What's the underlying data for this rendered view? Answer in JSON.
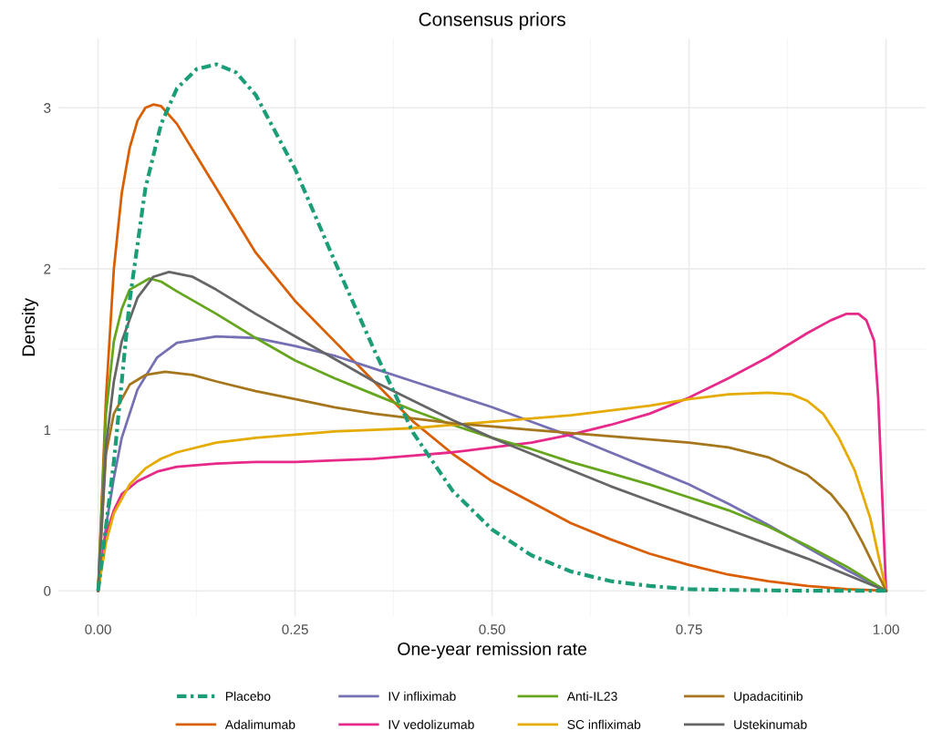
{
  "chart_data": {
    "type": "line",
    "title": "Consensus priors",
    "xlabel": "One-year remission rate",
    "ylabel": "Density",
    "xlim": [
      -0.05,
      1.05
    ],
    "ylim": [
      -0.16,
      3.43
    ],
    "xticks": [
      {
        "value": 0,
        "label": "0.00"
      },
      {
        "value": 0.25,
        "label": "0.25"
      },
      {
        "value": 0.5,
        "label": "0.50"
      },
      {
        "value": 0.75,
        "label": "0.75"
      },
      {
        "value": 1,
        "label": "1.00"
      }
    ],
    "yticks": [
      0,
      1,
      2,
      3
    ],
    "grid": true,
    "legend": "bottom",
    "marker": "none",
    "line_style": "solid",
    "series": [
      {
        "name": "Placebo",
        "color": "#1b9e77",
        "line_style": "dashdot",
        "x": [
          0,
          0.02,
          0.04,
          0.06,
          0.08,
          0.1,
          0.125,
          0.15,
          0.175,
          0.2,
          0.25,
          0.3,
          0.35,
          0.4,
          0.45,
          0.5,
          0.55,
          0.6,
          0.65,
          0.7,
          0.75,
          0.8,
          0.9,
          1
        ],
        "values": [
          0,
          0.8,
          1.8,
          2.5,
          2.9,
          3.12,
          3.24,
          3.27,
          3.22,
          3.08,
          2.62,
          2.05,
          1.5,
          0.98,
          0.62,
          0.38,
          0.22,
          0.12,
          0.06,
          0.03,
          0.01,
          0.005,
          0,
          0
        ]
      },
      {
        "name": "Adalimumab",
        "color": "#d95f02",
        "x": [
          0,
          0.01,
          0.02,
          0.03,
          0.04,
          0.05,
          0.06,
          0.07,
          0.08,
          0.1,
          0.125,
          0.15,
          0.2,
          0.25,
          0.3,
          0.35,
          0.4,
          0.45,
          0.5,
          0.55,
          0.6,
          0.65,
          0.7,
          0.75,
          0.8,
          0.85,
          0.9,
          0.95,
          1
        ],
        "values": [
          0,
          1.2,
          2.0,
          2.47,
          2.75,
          2.92,
          3.0,
          3.02,
          3.01,
          2.9,
          2.7,
          2.5,
          2.1,
          1.8,
          1.55,
          1.3,
          1.05,
          0.85,
          0.68,
          0.55,
          0.42,
          0.32,
          0.23,
          0.16,
          0.1,
          0.06,
          0.03,
          0.01,
          0
        ]
      },
      {
        "name": "IV infliximab",
        "color": "#7570b3",
        "x": [
          0,
          0.01,
          0.02,
          0.03,
          0.05,
          0.075,
          0.1,
          0.15,
          0.2,
          0.25,
          0.3,
          0.35,
          0.4,
          0.45,
          0.5,
          0.55,
          0.6,
          0.65,
          0.7,
          0.75,
          0.8,
          0.85,
          0.9,
          0.95,
          1
        ],
        "values": [
          0,
          0.4,
          0.7,
          0.95,
          1.25,
          1.45,
          1.54,
          1.58,
          1.57,
          1.52,
          1.46,
          1.38,
          1.3,
          1.22,
          1.14,
          1.05,
          0.96,
          0.86,
          0.76,
          0.66,
          0.54,
          0.41,
          0.27,
          0.13,
          0
        ]
      },
      {
        "name": "IV vedolizumab",
        "color": "#e7298a",
        "x": [
          0,
          0.01,
          0.02,
          0.03,
          0.05,
          0.075,
          0.1,
          0.15,
          0.2,
          0.25,
          0.3,
          0.35,
          0.4,
          0.45,
          0.5,
          0.55,
          0.6,
          0.65,
          0.7,
          0.75,
          0.8,
          0.85,
          0.9,
          0.93,
          0.95,
          0.965,
          0.975,
          0.985,
          0.99,
          1
        ],
        "values": [
          0,
          0.35,
          0.5,
          0.6,
          0.68,
          0.74,
          0.77,
          0.79,
          0.8,
          0.8,
          0.81,
          0.82,
          0.84,
          0.86,
          0.89,
          0.92,
          0.97,
          1.03,
          1.1,
          1.2,
          1.32,
          1.45,
          1.6,
          1.68,
          1.72,
          1.72,
          1.68,
          1.55,
          1.2,
          0
        ]
      },
      {
        "name": "Anti-IL23",
        "color": "#66a61e",
        "x": [
          0,
          0.01,
          0.02,
          0.03,
          0.04,
          0.065,
          0.08,
          0.1,
          0.15,
          0.2,
          0.25,
          0.3,
          0.35,
          0.4,
          0.45,
          0.5,
          0.55,
          0.6,
          0.65,
          0.7,
          0.75,
          0.8,
          0.85,
          0.9,
          0.95,
          1
        ],
        "values": [
          0,
          1.1,
          1.55,
          1.75,
          1.87,
          1.94,
          1.92,
          1.86,
          1.72,
          1.57,
          1.43,
          1.32,
          1.22,
          1.12,
          1.03,
          0.95,
          0.88,
          0.8,
          0.73,
          0.66,
          0.58,
          0.5,
          0.4,
          0.28,
          0.15,
          0
        ]
      },
      {
        "name": "SC infliximab",
        "color": "#e6ab02",
        "x": [
          0,
          0.01,
          0.02,
          0.04,
          0.06,
          0.08,
          0.1,
          0.15,
          0.2,
          0.25,
          0.3,
          0.35,
          0.4,
          0.45,
          0.5,
          0.55,
          0.6,
          0.65,
          0.7,
          0.75,
          0.8,
          0.85,
          0.88,
          0.9,
          0.92,
          0.94,
          0.96,
          0.98,
          1
        ],
        "values": [
          0,
          0.3,
          0.48,
          0.66,
          0.76,
          0.82,
          0.86,
          0.92,
          0.95,
          0.97,
          0.99,
          1.0,
          1.01,
          1.03,
          1.05,
          1.07,
          1.09,
          1.12,
          1.15,
          1.19,
          1.22,
          1.23,
          1.22,
          1.18,
          1.1,
          0.95,
          0.75,
          0.45,
          0
        ]
      },
      {
        "name": "Upadacitinib",
        "color": "#a6761d",
        "x": [
          0,
          0.01,
          0.02,
          0.04,
          0.06,
          0.085,
          0.12,
          0.15,
          0.2,
          0.25,
          0.3,
          0.35,
          0.4,
          0.45,
          0.5,
          0.55,
          0.6,
          0.65,
          0.7,
          0.75,
          0.8,
          0.85,
          0.9,
          0.93,
          0.95,
          0.97,
          0.99,
          1
        ],
        "values": [
          0,
          0.85,
          1.1,
          1.28,
          1.34,
          1.36,
          1.34,
          1.3,
          1.24,
          1.19,
          1.14,
          1.1,
          1.07,
          1.04,
          1.02,
          1.0,
          0.98,
          0.96,
          0.94,
          0.92,
          0.89,
          0.83,
          0.72,
          0.6,
          0.48,
          0.3,
          0.1,
          0
        ]
      },
      {
        "name": "Ustekinumab",
        "color": "#666666",
        "x": [
          0,
          0.01,
          0.02,
          0.03,
          0.05,
          0.07,
          0.09,
          0.12,
          0.15,
          0.2,
          0.25,
          0.3,
          0.35,
          0.4,
          0.45,
          0.5,
          0.55,
          0.6,
          0.65,
          0.7,
          0.75,
          0.8,
          0.85,
          0.9,
          0.95,
          1
        ],
        "values": [
          0,
          0.9,
          1.3,
          1.55,
          1.82,
          1.95,
          1.98,
          1.95,
          1.87,
          1.72,
          1.58,
          1.44,
          1.3,
          1.18,
          1.06,
          0.95,
          0.85,
          0.75,
          0.65,
          0.56,
          0.47,
          0.38,
          0.29,
          0.2,
          0.1,
          0
        ]
      }
    ]
  }
}
